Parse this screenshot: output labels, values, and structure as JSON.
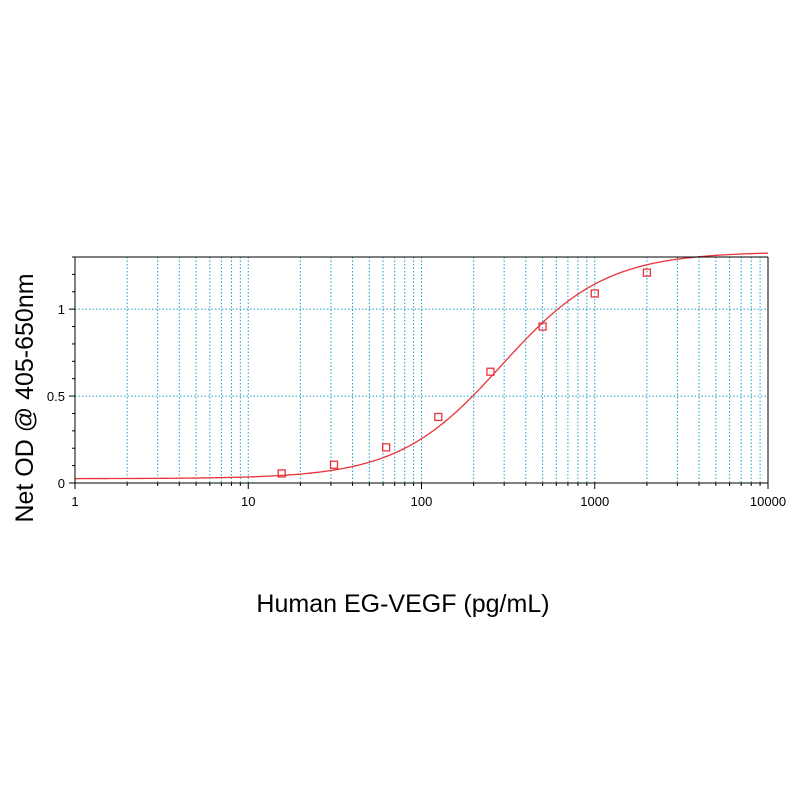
{
  "chart_data": {
    "type": "scatter",
    "xlabel": "Human EG-VEGF (pg/mL)",
    "ylabel": "Net OD @ 405-650nm",
    "x_scale": "log",
    "xlim": [
      1,
      10000
    ],
    "ylim": [
      0,
      1.3
    ],
    "x_ticks": [
      "1",
      "10",
      "100",
      "1000",
      "10000"
    ],
    "y_ticks": [
      "0",
      "0.5",
      "1"
    ],
    "grid": true,
    "legend": "none",
    "colors": {
      "curve": "#e8333b",
      "marker": "#e8333b",
      "grid": "#1aa3c8",
      "axis": "#000000"
    },
    "series": [
      {
        "points": [
          {
            "x": 15.6,
            "y": 0.055
          },
          {
            "x": 31.25,
            "y": 0.105
          },
          {
            "x": 62.5,
            "y": 0.205
          },
          {
            "x": 125,
            "y": 0.38
          },
          {
            "x": 250,
            "y": 0.64
          },
          {
            "x": 500,
            "y": 0.9
          },
          {
            "x": 1000,
            "y": 1.09
          },
          {
            "x": 2000,
            "y": 1.21
          }
        ]
      }
    ],
    "fit_curve": {
      "model": "4PL",
      "bottom": 0.025,
      "top": 1.33,
      "ec50": 290,
      "hill": 1.45
    }
  }
}
